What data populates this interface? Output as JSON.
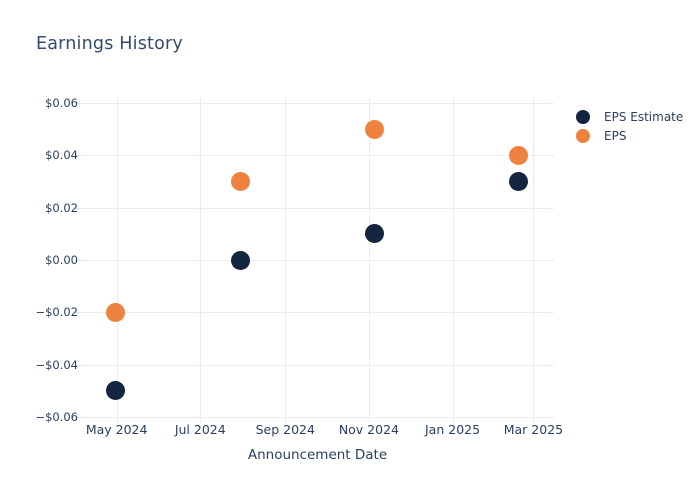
{
  "title": "Earnings History",
  "colors": {
    "eps_estimate": "#14263f",
    "eps": "#f0823f",
    "grid": "#e8ecf4",
    "axis_text": "#2a3f5f",
    "title_text": "#344b6e",
    "background": "#ffffff"
  },
  "chart_data": {
    "type": "scatter",
    "title": "Earnings History",
    "xlabel": "Announcement Date",
    "ylabel": "",
    "grid": true,
    "legend_position": "right-outside-top",
    "x_domain": [
      "2024-04-05",
      "2025-03-16"
    ],
    "ylim": [
      -0.0625,
      0.0625
    ],
    "x_ticks": [
      {
        "date": "2024-05-01",
        "label": "May 2024"
      },
      {
        "date": "2024-07-01",
        "label": "Jul 2024"
      },
      {
        "date": "2024-09-01",
        "label": "Sep 2024"
      },
      {
        "date": "2024-11-01",
        "label": "Nov 2024"
      },
      {
        "date": "2025-01-01",
        "label": "Jan 2025"
      },
      {
        "date": "2025-03-01",
        "label": "Mar 2025"
      }
    ],
    "y_ticks": [
      {
        "value": 0.06,
        "label": "$0.06"
      },
      {
        "value": 0.04,
        "label": "$0.04"
      },
      {
        "value": 0.02,
        "label": "$0.02"
      },
      {
        "value": 0.0,
        "label": "$0.00"
      },
      {
        "value": -0.02,
        "label": "−$0.02"
      },
      {
        "value": -0.04,
        "label": "−$0.04"
      },
      {
        "value": -0.06,
        "label": "−$0.06"
      }
    ],
    "series": [
      {
        "name": "EPS Estimate",
        "color": "#14263f",
        "points": [
          {
            "date": "2024-04-30",
            "value": -0.05
          },
          {
            "date": "2024-07-30",
            "value": 0.0
          },
          {
            "date": "2024-11-05",
            "value": 0.01
          },
          {
            "date": "2025-02-18",
            "value": 0.03
          }
        ]
      },
      {
        "name": "EPS",
        "color": "#f0823f",
        "points": [
          {
            "date": "2024-04-30",
            "value": -0.02
          },
          {
            "date": "2024-07-30",
            "value": 0.03
          },
          {
            "date": "2024-11-05",
            "value": 0.05
          },
          {
            "date": "2025-02-18",
            "value": 0.04
          }
        ]
      }
    ]
  }
}
